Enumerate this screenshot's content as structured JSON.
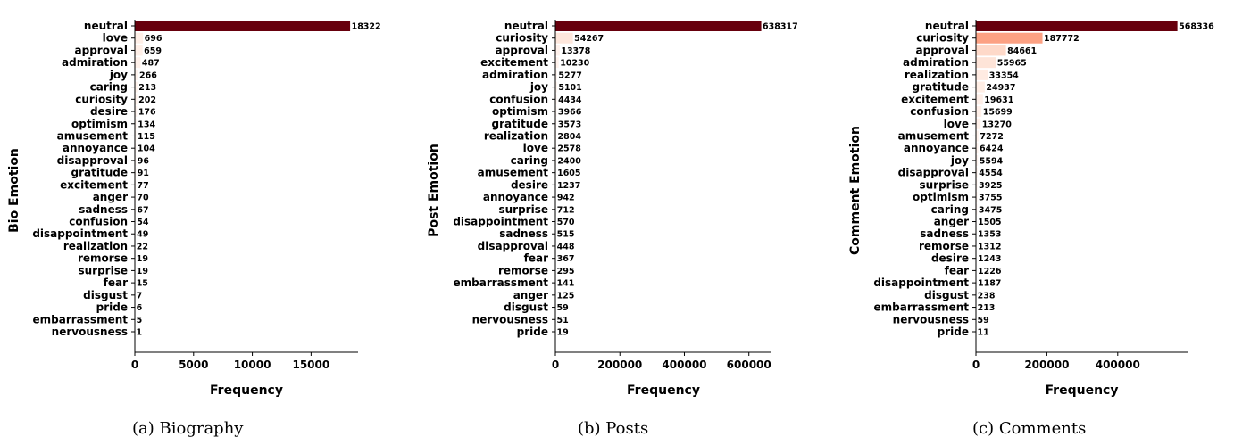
{
  "chart_data": [
    {
      "type": "bar",
      "orientation": "horizontal",
      "caption": "(a) Biography",
      "xlabel": "Frequency",
      "ylabel": "Bio Emotion",
      "xlim": [
        0,
        19000
      ],
      "xticks": [
        0,
        5000,
        10000,
        15000
      ],
      "colormap": "Reds",
      "categories": [
        "neutral",
        "love",
        "approval",
        "admiration",
        "joy",
        "caring",
        "curiosity",
        "desire",
        "optimism",
        "amusement",
        "annoyance",
        "disapproval",
        "gratitude",
        "excitement",
        "anger",
        "sadness",
        "confusion",
        "disappointment",
        "realization",
        "remorse",
        "surprise",
        "fear",
        "disgust",
        "pride",
        "embarrassment",
        "nervousness"
      ],
      "values": [
        18322,
        696,
        659,
        487,
        266,
        213,
        202,
        176,
        134,
        115,
        104,
        96,
        91,
        77,
        70,
        67,
        54,
        49,
        22,
        19,
        19,
        15,
        7,
        6,
        5,
        1
      ]
    },
    {
      "type": "bar",
      "orientation": "horizontal",
      "caption": "(b) Posts",
      "xlabel": "Frequency",
      "ylabel": "Post Emotion",
      "xlim": [
        0,
        670000
      ],
      "xticks": [
        0,
        200000,
        400000,
        600000
      ],
      "colormap": "Reds",
      "categories": [
        "neutral",
        "curiosity",
        "approval",
        "excitement",
        "admiration",
        "joy",
        "confusion",
        "optimism",
        "gratitude",
        "realization",
        "love",
        "caring",
        "amusement",
        "desire",
        "annoyance",
        "surprise",
        "disappointment",
        "sadness",
        "disapproval",
        "fear",
        "remorse",
        "embarrassment",
        "anger",
        "disgust",
        "nervousness",
        "pride"
      ],
      "values": [
        638317,
        54267,
        13378,
        10230,
        5277,
        5101,
        4434,
        3966,
        3573,
        2804,
        2578,
        2400,
        1605,
        1237,
        942,
        712,
        570,
        515,
        448,
        367,
        295,
        141,
        125,
        59,
        51,
        19
      ]
    },
    {
      "type": "bar",
      "orientation": "horizontal",
      "caption": "(c) Comments",
      "xlabel": "Frequency",
      "ylabel": "Comment Emotion",
      "xlim": [
        0,
        597000
      ],
      "xticks": [
        0,
        200000,
        400000
      ],
      "colormap": "Reds",
      "categories": [
        "neutral",
        "curiosity",
        "approval",
        "admiration",
        "realization",
        "gratitude",
        "excitement",
        "confusion",
        "love",
        "amusement",
        "annoyance",
        "joy",
        "disapproval",
        "surprise",
        "optimism",
        "caring",
        "anger",
        "sadness",
        "remorse",
        "desire",
        "fear",
        "disappointment",
        "disgust",
        "embarrassment",
        "nervousness",
        "pride"
      ],
      "values": [
        568336,
        187772,
        84661,
        55965,
        33354,
        24937,
        19631,
        15699,
        13270,
        7272,
        6424,
        5594,
        4554,
        3925,
        3755,
        3475,
        1505,
        1353,
        1312,
        1243,
        1226,
        1187,
        238,
        213,
        59,
        11
      ]
    }
  ]
}
